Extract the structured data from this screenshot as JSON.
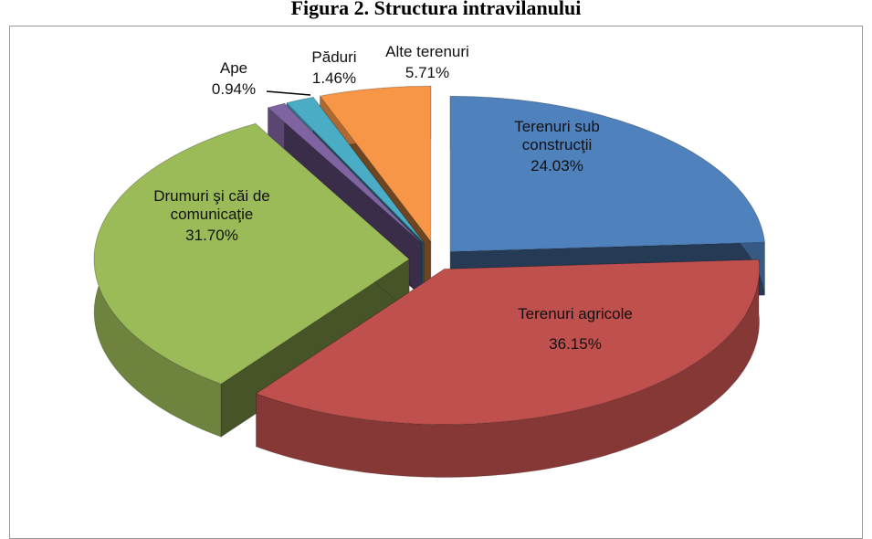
{
  "chart_data": {
    "type": "pie3d",
    "title": "Figura 2. Structura intravilanului",
    "categories": [
      "Terenuri sub construcţii",
      "Terenuri agricole",
      "Drumuri şi căi de comunicaţie",
      "Ape",
      "Păduri",
      "Alte terenuri"
    ],
    "values": [
      24.03,
      36.15,
      31.7,
      0.94,
      1.46,
      5.71
    ],
    "value_labels": [
      "24.03%",
      "36.15%",
      "31.70%",
      "0.94%",
      "1.46%",
      "5.71%"
    ],
    "colors": [
      "#4f81bd",
      "#c0504d",
      "#9bbb59",
      "#8064a2",
      "#4bacc6",
      "#f79646"
    ]
  }
}
